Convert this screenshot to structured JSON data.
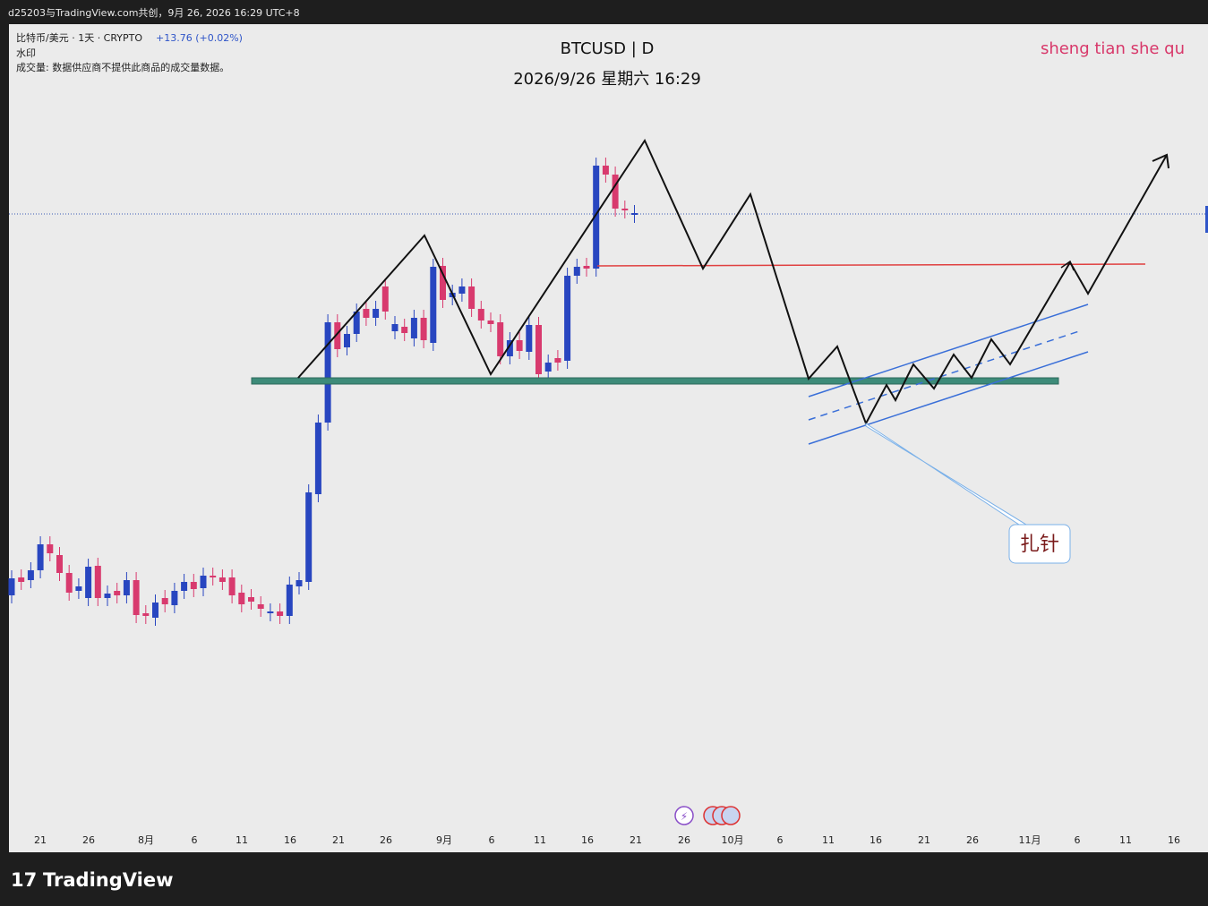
{
  "header": {
    "attribution": "d25203与TradingView.com共创，9月 26, 2026 16:29 UTC+8"
  },
  "legend": {
    "symbol": "比特币/美元 · 1天 · CRYPTO",
    "change": "+13.76 (+0.02%)",
    "watermark": "水印",
    "volume": "成交量: 数据供应商不提供此商品的成交量数据。"
  },
  "chart": {
    "title": "BTCUSD | D",
    "subtitle": "2026/9/26 星期六 16:29",
    "brand": "sheng tian she qu",
    "annotation": "扎针",
    "x_axis": [
      "21",
      "26",
      "8月",
      "6",
      "11",
      "16",
      "21",
      "26",
      "9月",
      "6",
      "11",
      "16",
      "21",
      "26",
      "10月",
      "6",
      "11",
      "16",
      "21",
      "26",
      "11月",
      "6",
      "11",
      "16"
    ]
  },
  "footer": {
    "logo": "TradingView"
  }
}
